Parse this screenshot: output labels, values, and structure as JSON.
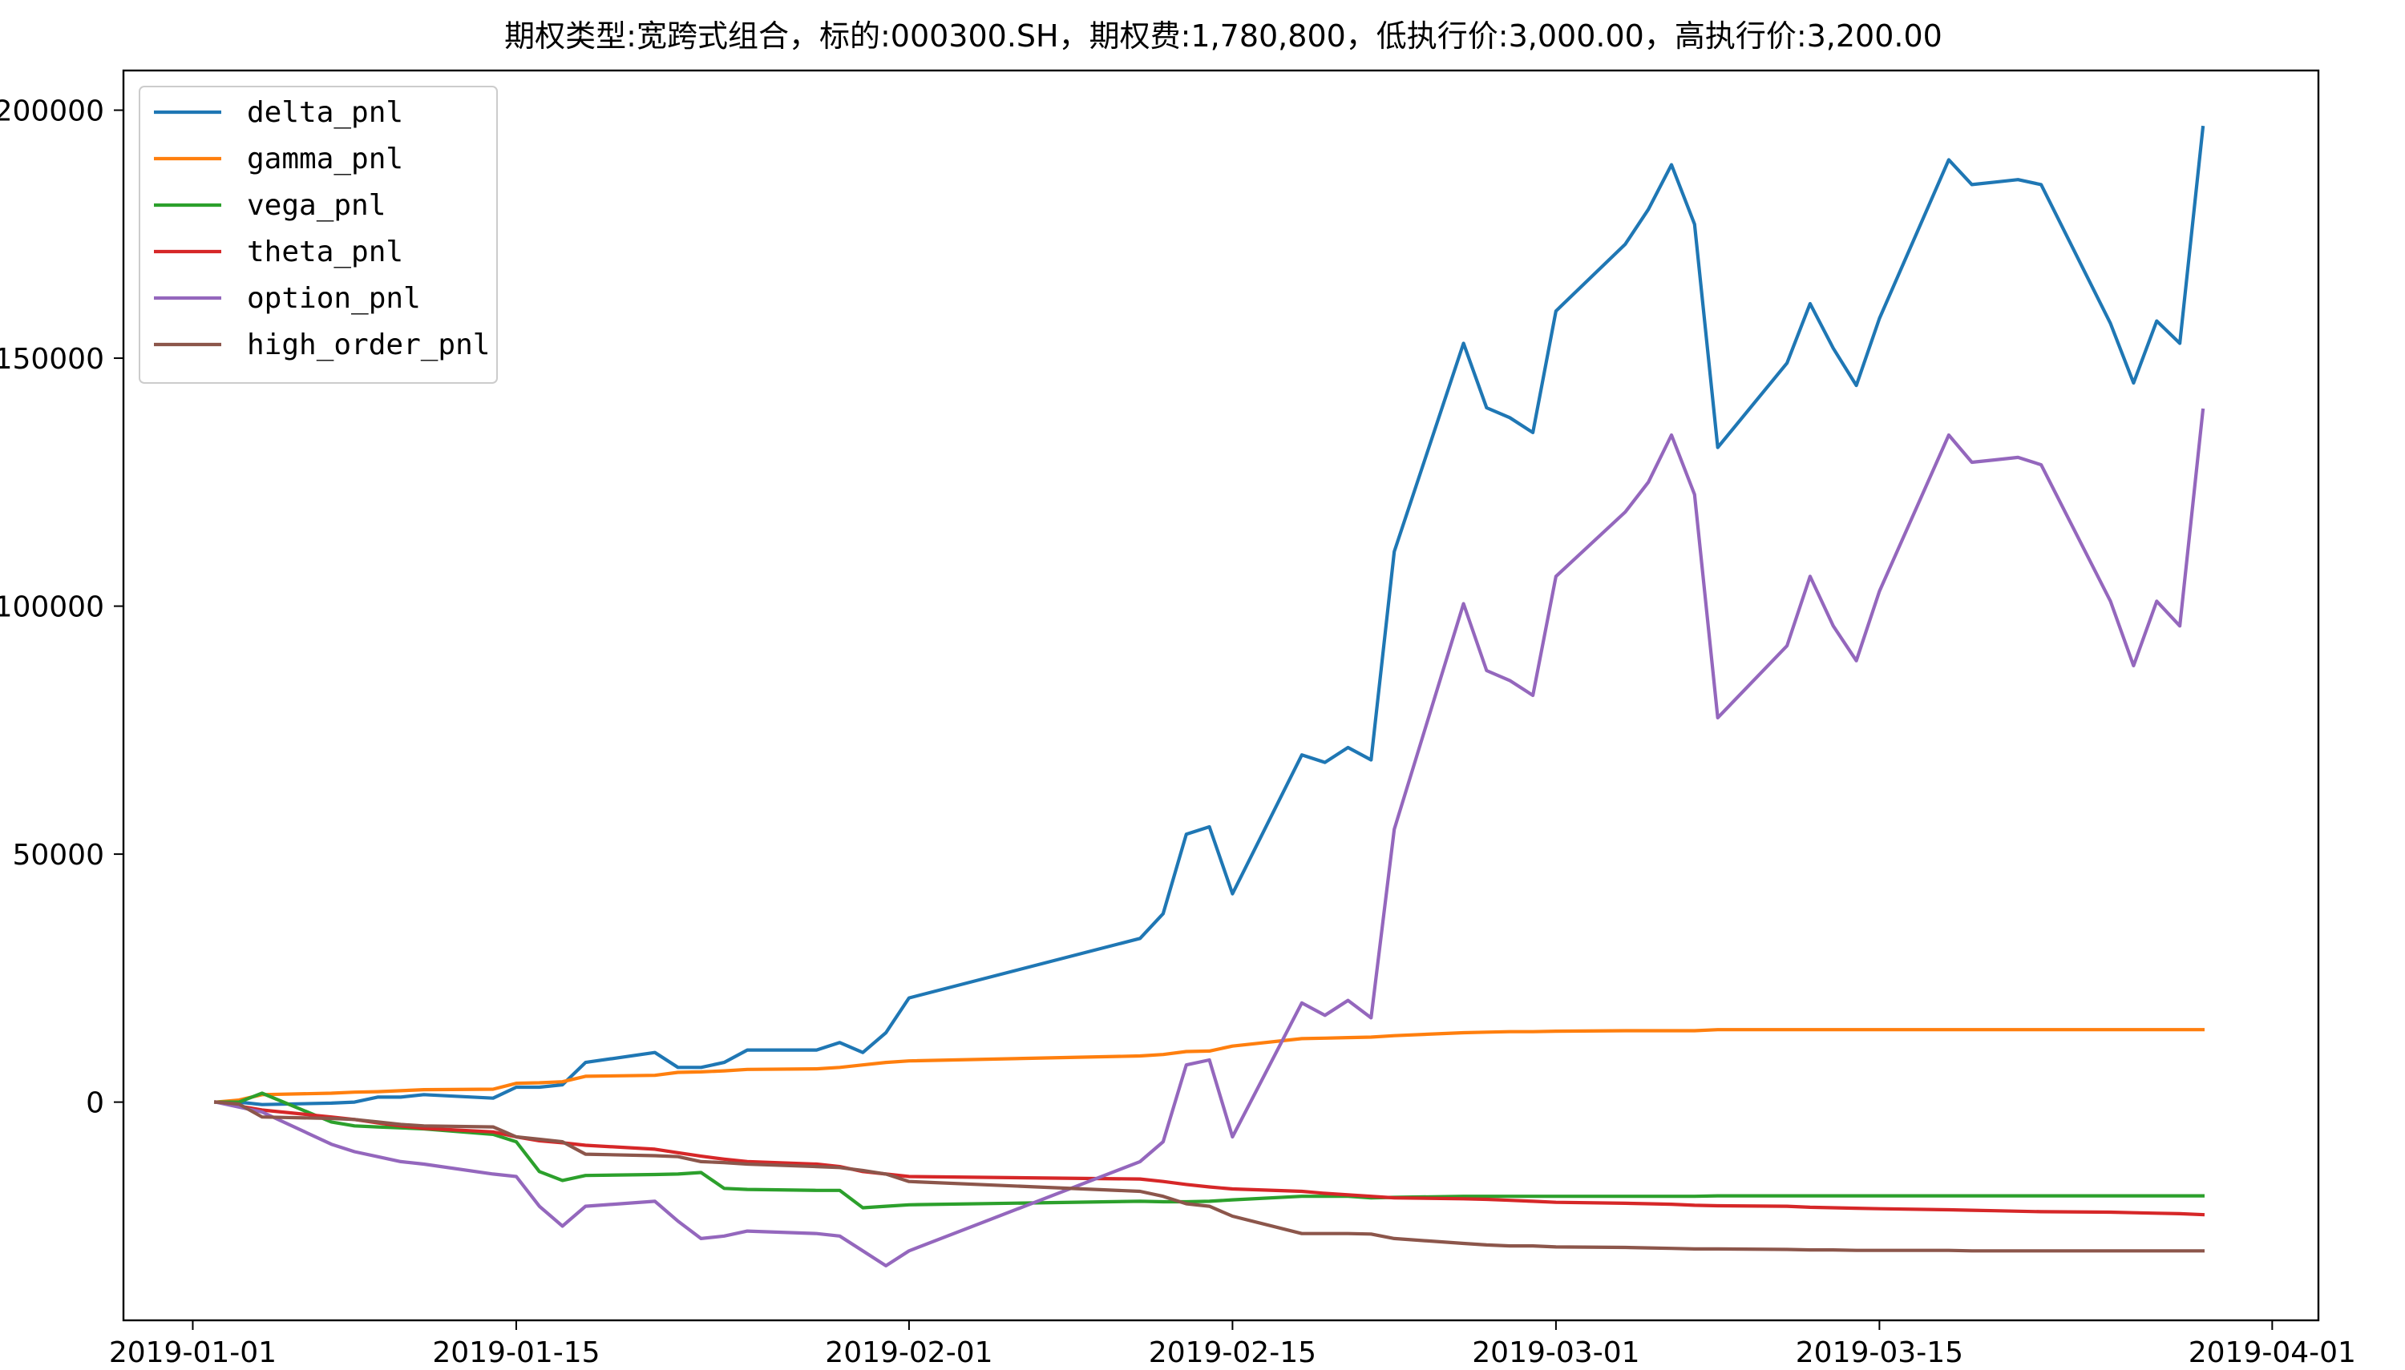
{
  "chart_data": {
    "type": "line",
    "title": "期权类型:宽跨式组合，标的:000300.SH，期权费:1,780,800，低执行价:3,000.00，高执行价:3,200.00",
    "xlabel": "",
    "ylabel": "",
    "x_axis_type": "date",
    "xlim": [
      "2018-12-29",
      "2019-04-03"
    ],
    "ylim": [
      -44000,
      208000
    ],
    "x_ticks": [
      "2019-01-01",
      "2019-01-15",
      "2019-02-01",
      "2019-02-15",
      "2019-03-01",
      "2019-03-15",
      "2019-04-01"
    ],
    "y_ticks": [
      0,
      50000,
      100000,
      150000,
      200000
    ],
    "grid": false,
    "legend_position": "top-left",
    "x": [
      "2019-01-02",
      "2019-01-03",
      "2019-01-04",
      "2019-01-07",
      "2019-01-08",
      "2019-01-09",
      "2019-01-10",
      "2019-01-11",
      "2019-01-14",
      "2019-01-15",
      "2019-01-16",
      "2019-01-17",
      "2019-01-18",
      "2019-01-21",
      "2019-01-22",
      "2019-01-23",
      "2019-01-24",
      "2019-01-25",
      "2019-01-28",
      "2019-01-29",
      "2019-01-30",
      "2019-01-31",
      "2019-02-01",
      "2019-02-11",
      "2019-02-12",
      "2019-02-13",
      "2019-02-14",
      "2019-02-15",
      "2019-02-18",
      "2019-02-19",
      "2019-02-20",
      "2019-02-21",
      "2019-02-22",
      "2019-02-25",
      "2019-02-26",
      "2019-02-27",
      "2019-02-28",
      "2019-03-01",
      "2019-03-04",
      "2019-03-05",
      "2019-03-06",
      "2019-03-07",
      "2019-03-08",
      "2019-03-11",
      "2019-03-12",
      "2019-03-13",
      "2019-03-14",
      "2019-03-15",
      "2019-03-18",
      "2019-03-19",
      "2019-03-20",
      "2019-03-21",
      "2019-03-22",
      "2019-03-25",
      "2019-03-26",
      "2019-03-27",
      "2019-03-28",
      "2019-03-29"
    ],
    "series": [
      {
        "name": "delta_pnl",
        "color": "#1f77b4",
        "values": [
          0,
          0,
          -500,
          -200,
          0,
          1000,
          1000,
          1500,
          800,
          3000,
          3000,
          3500,
          8000,
          10000,
          7000,
          7000,
          8000,
          10500,
          10500,
          12000,
          10000,
          14000,
          21000,
          33000,
          38000,
          54000,
          55500,
          42000,
          70000,
          68500,
          71500,
          69000,
          111000,
          153000,
          140000,
          138000,
          135000,
          159500,
          173000,
          180000,
          189000,
          177000,
          132000,
          149000,
          161000,
          152000,
          144500,
          158000,
          190000,
          185000,
          185500,
          186000,
          185000,
          157000,
          145000,
          157500,
          153000,
          196500
        ]
      },
      {
        "name": "gamma_pnl",
        "color": "#ff7f0e",
        "values": [
          0,
          400,
          1500,
          1800,
          2000,
          2100,
          2300,
          2500,
          2600,
          3800,
          3900,
          4100,
          5200,
          5400,
          6000,
          6100,
          6300,
          6600,
          6700,
          7000,
          7500,
          8000,
          8300,
          9300,
          9600,
          10200,
          10300,
          11300,
          12800,
          12900,
          13000,
          13100,
          13400,
          14000,
          14100,
          14200,
          14200,
          14300,
          14400,
          14400,
          14400,
          14400,
          14600,
          14600,
          14600,
          14600,
          14600,
          14600,
          14600,
          14600,
          14600,
          14600,
          14600,
          14600,
          14600,
          14600,
          14600,
          14600
        ]
      },
      {
        "name": "vega_pnl",
        "color": "#2ca02c",
        "values": [
          0,
          0,
          1800,
          -4000,
          -4800,
          -5000,
          -5200,
          -5400,
          -6500,
          -8000,
          -14000,
          -15800,
          -14800,
          -14600,
          -14500,
          -14200,
          -17400,
          -17600,
          -17800,
          -17800,
          -21300,
          -21000,
          -20700,
          -20000,
          -20100,
          -20100,
          -20000,
          -19700,
          -19000,
          -19000,
          -19000,
          -19300,
          -19200,
          -19000,
          -19000,
          -19000,
          -19000,
          -19000,
          -19000,
          -19000,
          -19000,
          -19000,
          -18900,
          -18900,
          -18900,
          -18900,
          -18900,
          -18900,
          -18900,
          -18900,
          -18900,
          -18900,
          -18900,
          -18900,
          -18900,
          -18900,
          -18900,
          -18900
        ]
      },
      {
        "name": "theta_pnl",
        "color": "#d62728",
        "values": [
          0,
          -800,
          -1600,
          -3000,
          -3500,
          -4200,
          -4800,
          -5300,
          -6000,
          -7000,
          -7800,
          -8200,
          -8700,
          -9500,
          -10200,
          -10900,
          -11500,
          -12000,
          -12500,
          -13000,
          -14000,
          -14500,
          -15000,
          -15500,
          -16000,
          -16600,
          -17100,
          -17500,
          -18000,
          -18400,
          -18700,
          -19000,
          -19300,
          -19500,
          -19600,
          -19800,
          -20000,
          -20200,
          -20400,
          -20500,
          -20600,
          -20800,
          -20900,
          -21000,
          -21200,
          -21300,
          -21400,
          -21500,
          -21700,
          -21800,
          -21900,
          -22000,
          -22100,
          -22200,
          -22300,
          -22400,
          -22500,
          -22700
        ]
      },
      {
        "name": "option_pnl",
        "color": "#9467bd",
        "values": [
          0,
          -1000,
          -2000,
          -8500,
          -10000,
          -11000,
          -12000,
          -12500,
          -14500,
          -15000,
          -21000,
          -25000,
          -21000,
          -20000,
          -24000,
          -27500,
          -27000,
          -26000,
          -26500,
          -27000,
          -30000,
          -33000,
          -30000,
          -12000,
          -8000,
          7500,
          8500,
          -7000,
          20000,
          17500,
          20500,
          17000,
          55000,
          100500,
          87000,
          85000,
          82000,
          106000,
          119000,
          125000,
          134500,
          122500,
          77500,
          92000,
          106000,
          96000,
          89000,
          103000,
          134500,
          129000,
          129500,
          130000,
          128500,
          101000,
          88000,
          101000,
          96000,
          139500
        ]
      },
      {
        "name": "high_order_pnl",
        "color": "#8c564b",
        "values": [
          0,
          -400,
          -3000,
          -3300,
          -3500,
          -4000,
          -4500,
          -4800,
          -5000,
          -7000,
          -7500,
          -8000,
          -10500,
          -10800,
          -11000,
          -12000,
          -12200,
          -12500,
          -13000,
          -13200,
          -13800,
          -14500,
          -16000,
          -18000,
          -19000,
          -20500,
          -21000,
          -23000,
          -26500,
          -26500,
          -26500,
          -26600,
          -27500,
          -28500,
          -28800,
          -29000,
          -29000,
          -29200,
          -29300,
          -29400,
          -29500,
          -29600,
          -29600,
          -29700,
          -29800,
          -29800,
          -29900,
          -29900,
          -29900,
          -30000,
          -30000,
          -30000,
          -30000,
          -30000,
          -30000,
          -30000,
          -30000,
          -30000
        ]
      }
    ]
  }
}
